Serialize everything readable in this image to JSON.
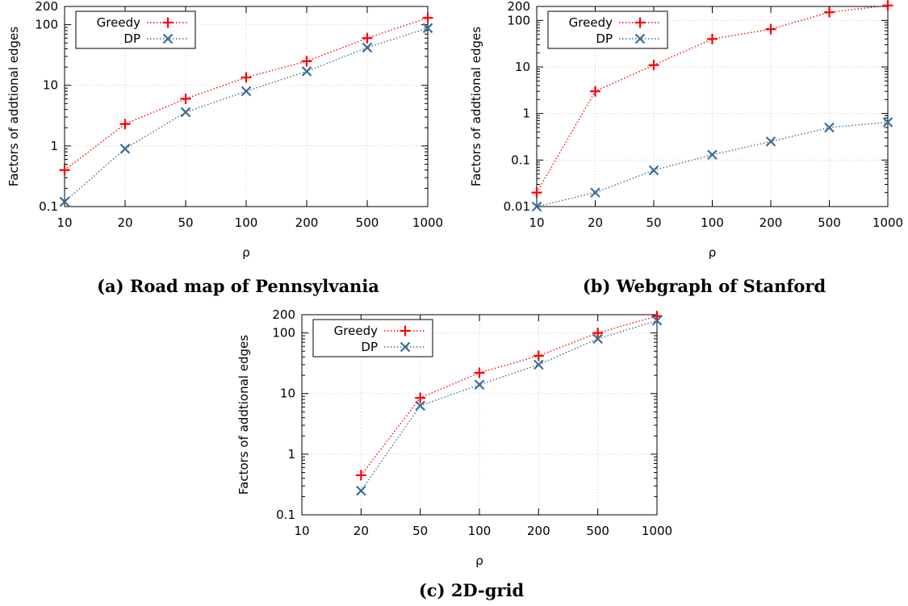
{
  "chart_data": [
    {
      "type": "line",
      "caption": "(a) Road map of Pennsylvania",
      "xlabel": "ρ",
      "ylabel": "Factors of addtional edges",
      "x_tick_labels": [
        "10",
        "20",
        "50",
        "100",
        "200",
        "500",
        "1000"
      ],
      "y_tick_labels": [
        "0.1",
        "1",
        "10",
        "100",
        "200"
      ],
      "y_tick_values": [
        0.1,
        1,
        10,
        100,
        200
      ],
      "ylim": [
        0.1,
        200
      ],
      "yscale": "log",
      "grid": true,
      "legend": "top-left",
      "series": [
        {
          "name": "Greedy",
          "color": "#ff0000",
          "marker": "plus",
          "values": [
            0.4,
            2.3,
            6,
            13.5,
            25,
            60,
            130
          ]
        },
        {
          "name": "DP",
          "color": "#3c6e96",
          "marker": "cross",
          "values": [
            0.12,
            0.9,
            3.6,
            8,
            17,
            42,
            88
          ]
        }
      ]
    },
    {
      "type": "line",
      "caption": "(b) Webgraph of Stanford",
      "xlabel": "ρ",
      "ylabel": "Factors of addtional edges",
      "x_tick_labels": [
        "10",
        "20",
        "50",
        "100",
        "200",
        "500",
        "1000"
      ],
      "y_tick_labels": [
        "0.01",
        "0.1",
        "1",
        "10",
        "100",
        "200"
      ],
      "y_tick_values": [
        0.01,
        0.1,
        1,
        10,
        100,
        200
      ],
      "ylim": [
        0.01,
        200
      ],
      "yscale": "log",
      "grid": true,
      "legend": "top-left",
      "series": [
        {
          "name": "Greedy",
          "color": "#ff0000",
          "marker": "plus",
          "values": [
            0.02,
            3,
            11,
            40,
            65,
            150,
            210
          ]
        },
        {
          "name": "DP",
          "color": "#3c6e96",
          "marker": "cross",
          "values": [
            0.01,
            0.02,
            0.06,
            0.13,
            0.25,
            0.5,
            0.65
          ]
        }
      ]
    },
    {
      "type": "line",
      "caption": "(c) 2D-grid",
      "xlabel": "ρ",
      "ylabel": "Factors of addtional edges",
      "x_tick_labels": [
        "10",
        "20",
        "50",
        "100",
        "200",
        "500",
        "1000"
      ],
      "y_tick_labels": [
        "0.1",
        "1",
        "10",
        "100",
        "200"
      ],
      "y_tick_values": [
        0.1,
        1,
        10,
        100,
        200
      ],
      "ylim": [
        0.1,
        200
      ],
      "yscale": "log",
      "grid": true,
      "legend": "top-left",
      "series": [
        {
          "name": "Greedy",
          "color": "#ff0000",
          "marker": "plus",
          "values": [
            null,
            0.45,
            8.5,
            22,
            42,
            100,
            190
          ]
        },
        {
          "name": "DP",
          "color": "#3c6e96",
          "marker": "cross",
          "values": [
            null,
            0.25,
            6.3,
            14,
            30,
            80,
            160
          ]
        }
      ]
    }
  ]
}
